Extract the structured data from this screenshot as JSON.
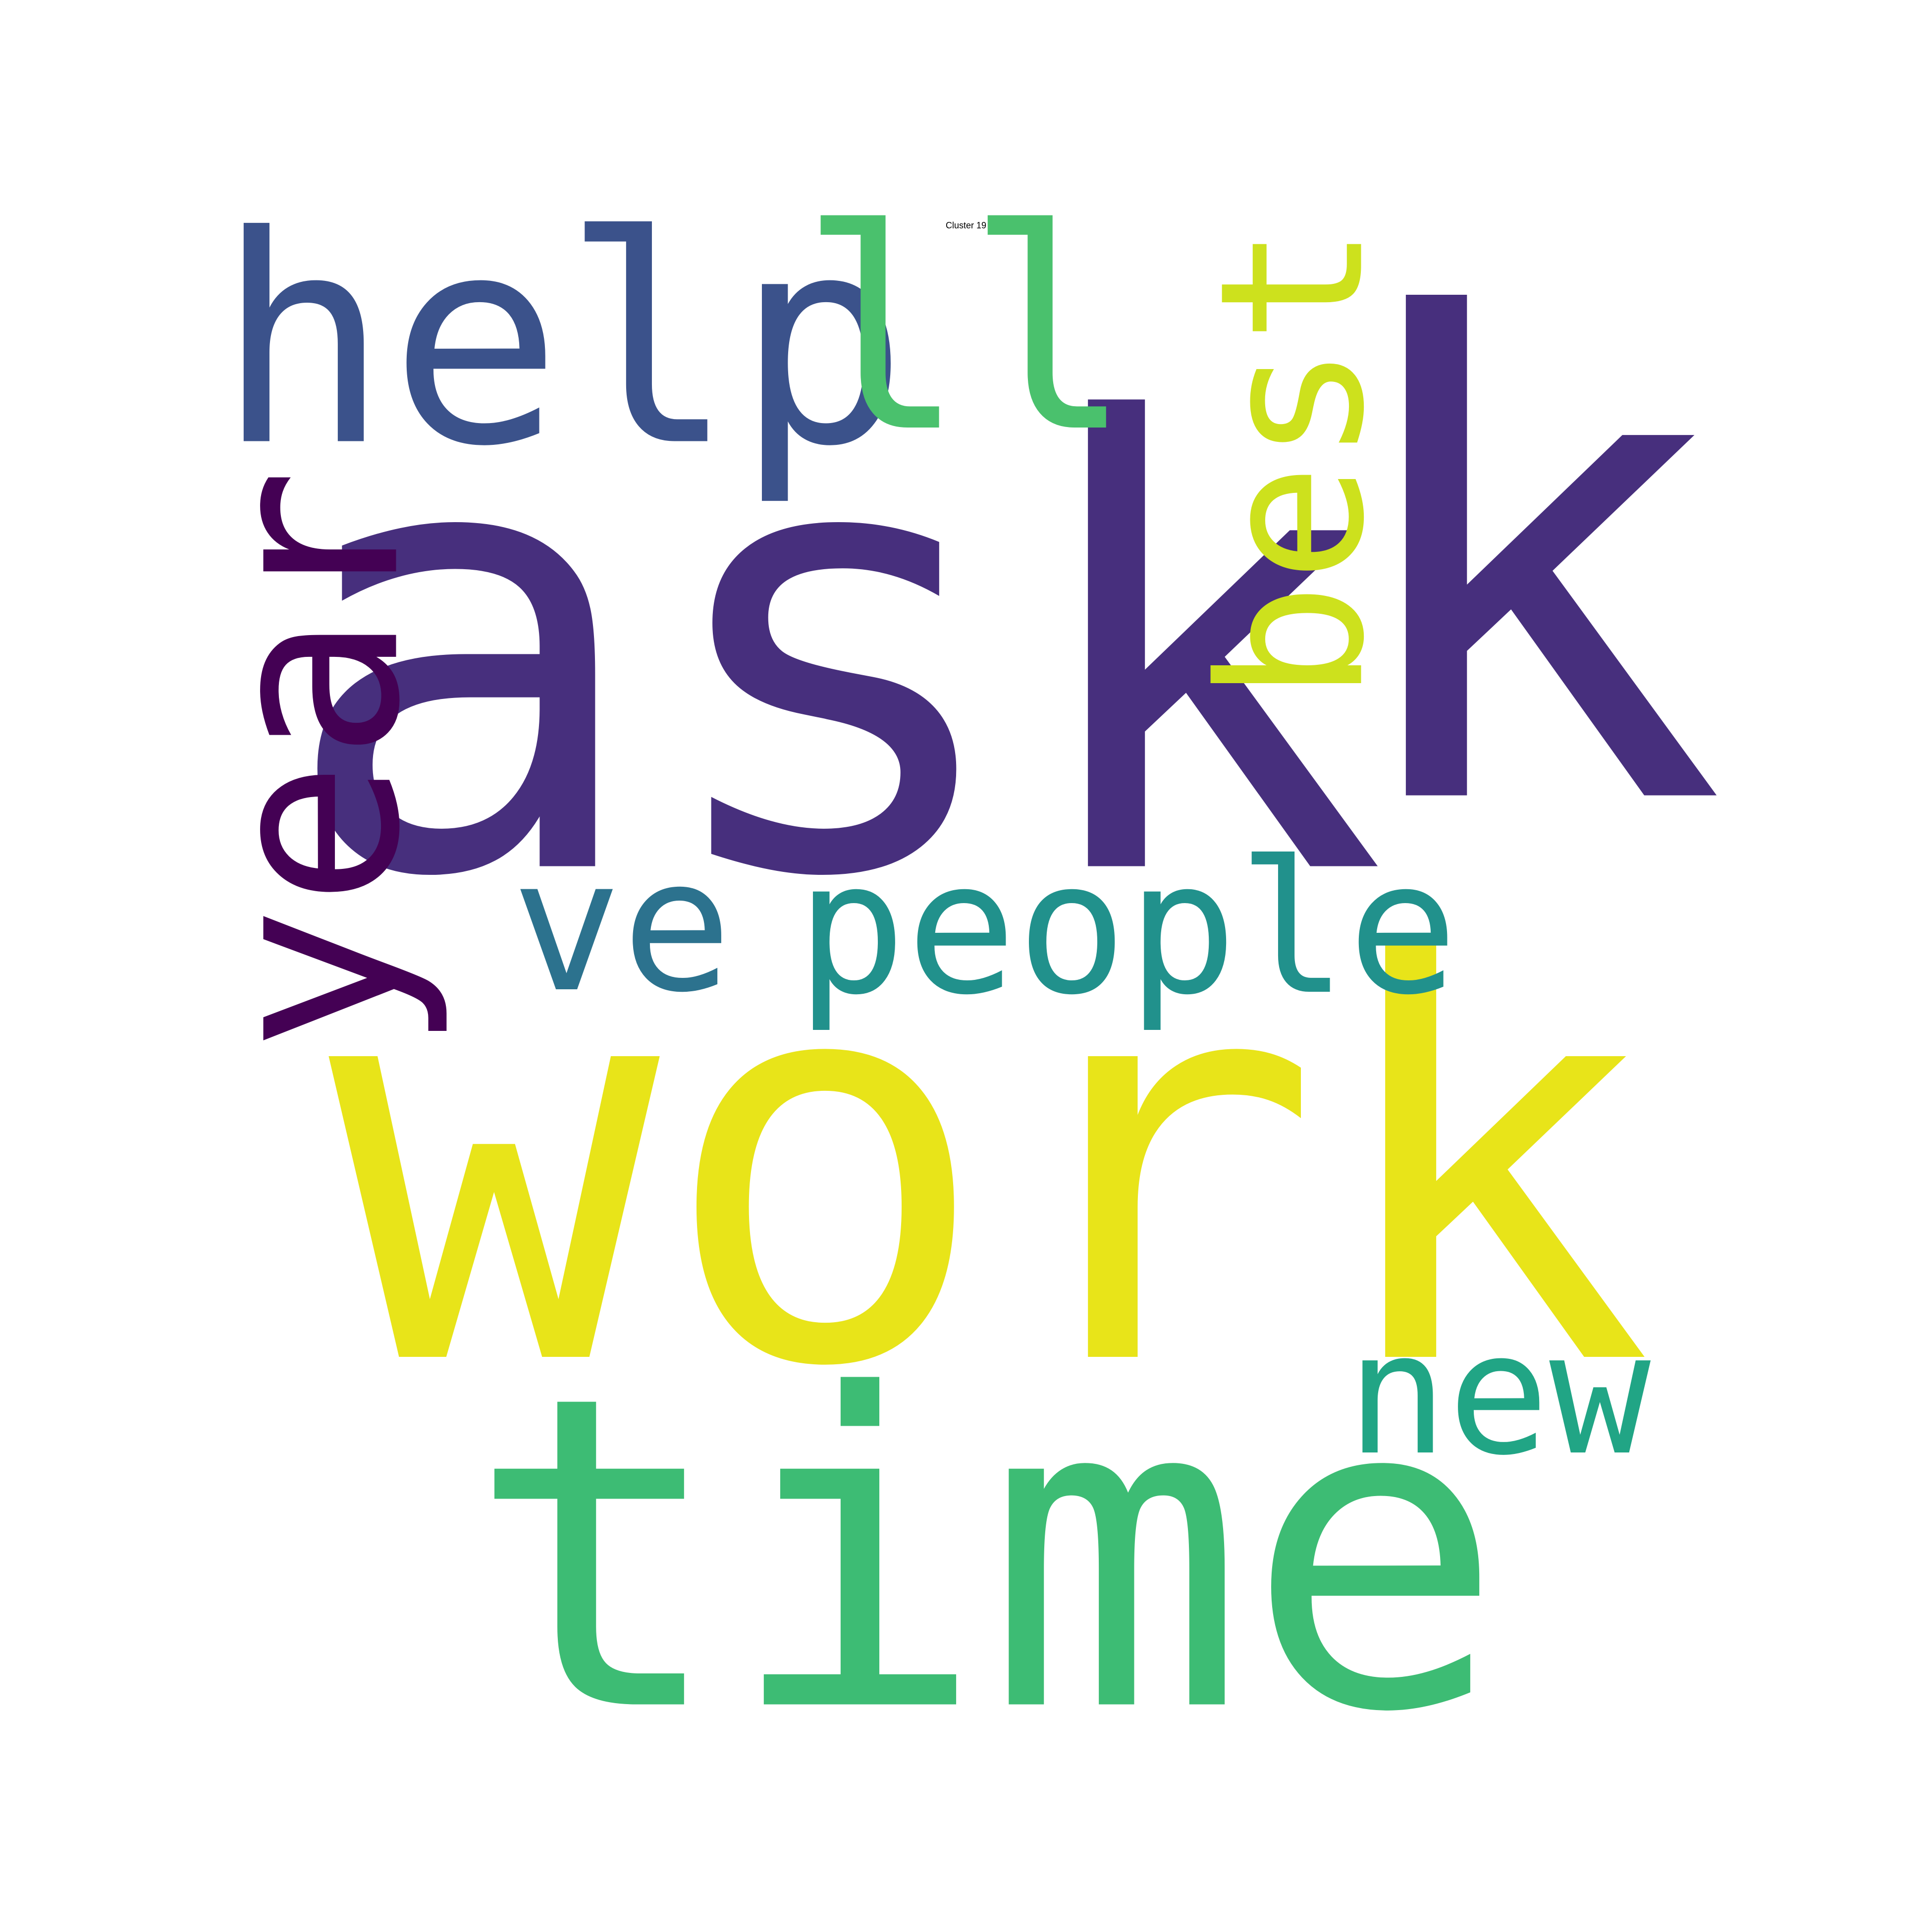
{
  "title": "Cluster 19",
  "words": [
    {
      "text": "ask",
      "color": "#472f7d",
      "orientation": "horizontal"
    },
    {
      "text": "work",
      "color": "#e8e419",
      "orientation": "horizontal"
    },
    {
      "text": "time",
      "color": "#3dbc74",
      "orientation": "horizontal"
    },
    {
      "text": "k",
      "color": "#472f7d",
      "orientation": "horizontal"
    },
    {
      "text": "help",
      "color": "#3b528b",
      "orientation": "horizontal"
    },
    {
      "text": "ll",
      "color": "#4ac16d",
      "orientation": "horizontal"
    },
    {
      "text": "best",
      "color": "#cde11d",
      "orientation": "vertical"
    },
    {
      "text": "year",
      "color": "#440154",
      "orientation": "vertical"
    },
    {
      "text": "ve",
      "color": "#2c728e",
      "orientation": "horizontal"
    },
    {
      "text": "people",
      "color": "#21918c",
      "orientation": "horizontal"
    },
    {
      "text": "new",
      "color": "#21a585",
      "orientation": "horizontal"
    }
  ],
  "colors": {
    "background": "#ffffff",
    "title": "#000000"
  }
}
